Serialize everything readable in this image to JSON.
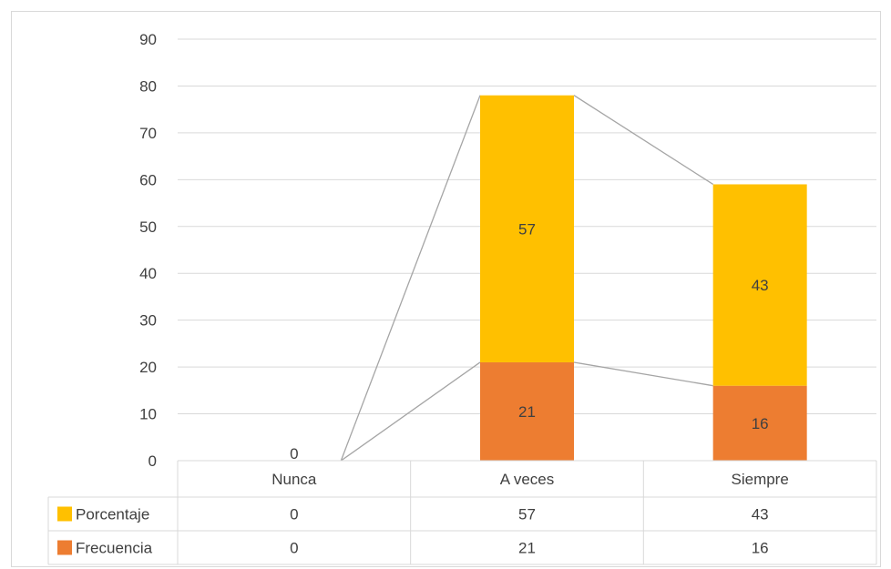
{
  "chart_data": {
    "type": "bar",
    "stacked": true,
    "categories": [
      "Nunca",
      "A veces",
      "Siempre"
    ],
    "series": [
      {
        "name": "Frecuencia",
        "values": [
          0,
          21,
          16
        ],
        "color": "#ED7D31"
      },
      {
        "name": "Porcentaje",
        "values": [
          0,
          57,
          43
        ],
        "color": "#FFC000"
      }
    ],
    "series_lines": true,
    "ylim": [
      0,
      90
    ],
    "yticks": [
      0,
      10,
      20,
      30,
      40,
      50,
      60,
      70,
      80,
      90
    ],
    "grid": true,
    "legend": "data-table",
    "data_table": {
      "rows": [
        {
          "series": "Porcentaje",
          "values": [
            "0",
            "57",
            "43"
          ]
        },
        {
          "series": "Frecuencia",
          "values": [
            "0",
            "21",
            "16"
          ]
        }
      ]
    },
    "nunca_label": "0",
    "title": "",
    "xlabel": "",
    "ylabel": ""
  }
}
